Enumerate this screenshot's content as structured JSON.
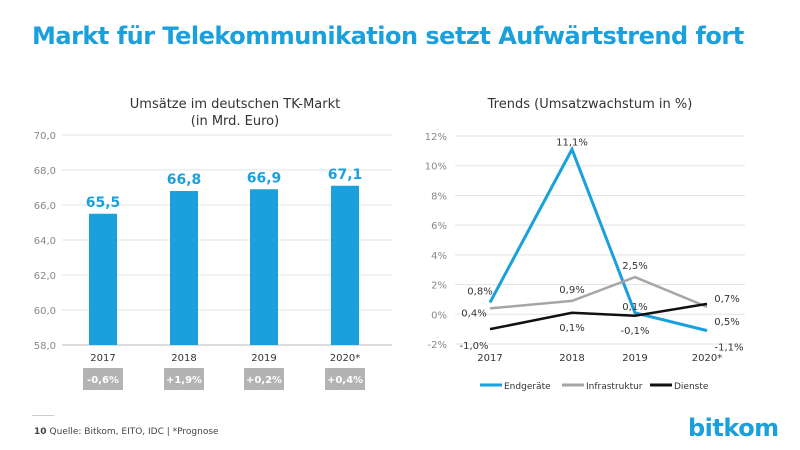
{
  "title": "Markt für Telekommunikation setzt Aufwärtstrend fort",
  "footer": {
    "page": "10",
    "source": "Quelle: Bitkom, EITO, IDC | *Prognose"
  },
  "logo": "bitkom",
  "colors": {
    "accent": "#1aa0dc",
    "grey": "#a6a6a6",
    "black": "#111111",
    "badge": "#b3b3b3"
  },
  "chart_data": [
    {
      "type": "bar",
      "title": "Umsätze im deutschen TK-Markt",
      "subtitle": "(in Mrd. Euro)",
      "categories": [
        "2017",
        "2018",
        "2019",
        "2020*"
      ],
      "values": [
        65.5,
        66.8,
        66.9,
        67.1
      ],
      "value_labels": [
        "65,5",
        "66,8",
        "66,9",
        "67,1"
      ],
      "growth_labels": [
        "-0,6%",
        "+1,9%",
        "+0,2%",
        "+0,4%"
      ],
      "ylim": [
        58,
        70
      ],
      "yticks": [
        "58,0",
        "60,0",
        "62,0",
        "64,0",
        "66,0",
        "68,0",
        "70,0"
      ],
      "grid": true
    },
    {
      "type": "line",
      "title": "Trends (Umsatzwachstum in %)",
      "categories": [
        "2017",
        "2018",
        "2019",
        "2020*"
      ],
      "ylim": [
        -2,
        12
      ],
      "yticks": [
        "-2%",
        "0%",
        "2%",
        "4%",
        "6%",
        "8%",
        "10%",
        "12%"
      ],
      "grid": true,
      "legend": "bottom",
      "series": [
        {
          "name": "Endgeräte",
          "color": "#1aa0dc",
          "values": [
            0.8,
            11.1,
            0.1,
            -1.1
          ],
          "labels": [
            "0,8%",
            "11,1%",
            "0,1%",
            "-1,1%"
          ]
        },
        {
          "name": "Infrastruktur",
          "color": "#a6a6a6",
          "values": [
            0.4,
            0.9,
            2.5,
            0.5
          ],
          "labels": [
            "0,4%",
            "0,9%",
            "2,5%",
            "0,5%"
          ]
        },
        {
          "name": "Dienste",
          "color": "#111111",
          "values": [
            -1.0,
            0.1,
            -0.1,
            0.7
          ],
          "labels": [
            "-1,0%",
            "0,1%",
            "-0,1%",
            "0,7%"
          ]
        }
      ]
    }
  ]
}
